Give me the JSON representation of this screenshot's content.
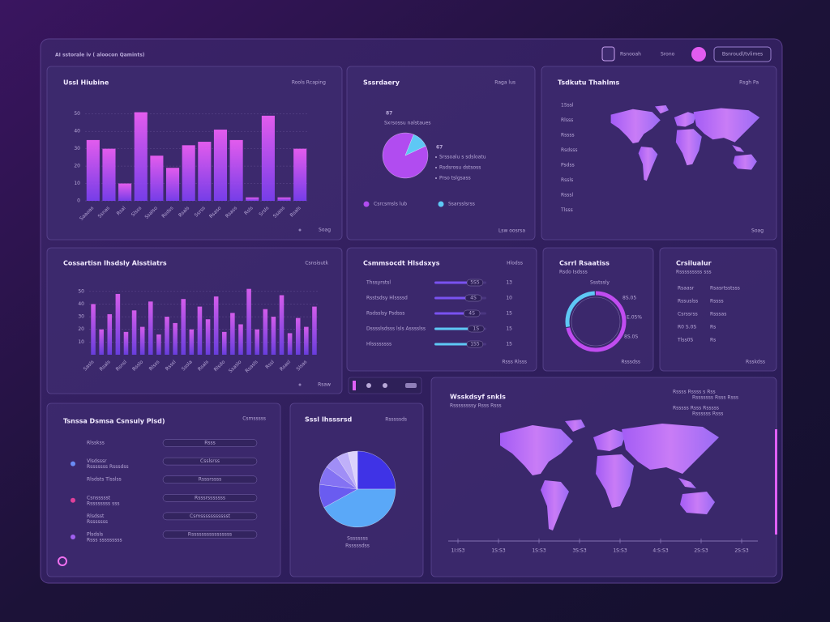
{
  "header": {
    "title": "AI sstorale iv ( aloocon Qamints)",
    "nav": [
      "Rsnooah",
      "Srono"
    ],
    "button": "Bsnroudl/tvlimes"
  },
  "chart_data": [
    {
      "type": "bar",
      "title": "Ussl Hiubine",
      "subtitle": "Rools Rcaping",
      "footer": "Soag",
      "categories": [
        "Saaoas",
        "Ssnas",
        "Rsal",
        "Slsss",
        "Ssalso",
        "Rsdss",
        "Rsals",
        "Ssrss",
        "Rsaso",
        "Rsass",
        "Rsls",
        "Srsls",
        "Ssaos",
        "Rsals"
      ],
      "values": [
        35,
        30,
        10,
        51,
        26,
        19,
        32,
        34,
        41,
        35,
        2,
        49,
        2,
        30
      ],
      "ylim": [
        0,
        55
      ],
      "yticks": [
        0,
        10,
        20,
        30,
        40,
        50
      ],
      "colors": [
        "#f060f8",
        "#7b3ff2"
      ],
      "grid": true
    },
    {
      "type": "pie",
      "title": "Sssrdaery",
      "subtitle": "Raga lus",
      "stat": "87",
      "stat_label": "Sxrsossu nalstaues",
      "stat2": "67",
      "notes": [
        "Srssoalu s sdsloatu",
        "Rsdsrosu dstsoss",
        "Prso tslgsass"
      ],
      "categories": [
        "Csrcsmsls lub",
        "Ssarsslsrss"
      ],
      "values": [
        88,
        12
      ],
      "colors": [
        "#b14cf0",
        "#5ec8f5"
      ],
      "footer": "Lsw oosrsa"
    },
    {
      "type": "bar",
      "title": "Cossartisn Ihsdsly Alsstiatrs",
      "subtitle": "Csnsisutk",
      "footer": "Rsaw",
      "categories": [
        "Sasls",
        null,
        "Rsals",
        null,
        "Rsnsl",
        null,
        "Rsslo",
        null,
        "Rlsss",
        null,
        "Rsssl",
        null,
        "Sssla",
        null,
        "Rsals",
        null,
        "Rlsdo",
        null,
        "Ssaslo",
        null,
        "Rsasls",
        null,
        "Rssl",
        null,
        "Rsasl",
        null,
        "Slsas",
        null
      ],
      "values": [
        40,
        20,
        32,
        48,
        18,
        35,
        22,
        42,
        16,
        30,
        25,
        44,
        20,
        38,
        28,
        46,
        18,
        33,
        24,
        52,
        20,
        36,
        30,
        47,
        17,
        29,
        22,
        38
      ],
      "ylim": [
        0,
        55
      ],
      "yticks": [
        10,
        20,
        30,
        40,
        50
      ],
      "colors": [
        "#e060f6",
        "#6b3fe6"
      ],
      "grid": true
    },
    {
      "type": "progress",
      "title": "Csmmsocdt Hlsdsxys",
      "subtitle": "Hlodss",
      "footer": "Rsss Rlsss",
      "categories": [
        "Thssyrstsl",
        "Rsstsdsy Hlssssd",
        "Rsdsslsy Psdsss",
        "Dsssslsdsss lsls Asssslss",
        "Hlssssssss"
      ],
      "values": [
        78,
        75,
        72,
        80,
        78
      ],
      "xlim": [
        0,
        100
      ],
      "colors": [
        "#7a52f0",
        "#7a52f0",
        "#7a52f0",
        "#5ec8f5",
        "#5ec8f5"
      ],
      "tags": [
        "5S5",
        "4S",
        "4S",
        "1S",
        "1S5"
      ],
      "counts": [
        "13",
        "10",
        "15",
        "15",
        "15"
      ]
    },
    {
      "type": "donut",
      "title": "Csrrl Rsaatiss",
      "subtitle": "Rsdo Isdsss",
      "top_label": "Ssstssly",
      "notes": [
        "8S.05",
        "E.05%",
        "8S.0S"
      ],
      "values": [
        72,
        28
      ],
      "colors": [
        "#c04cf0",
        "#5ec8f5"
      ],
      "footer": "Rsssdss"
    },
    {
      "type": "pie",
      "title": "Sssl Ihsssrsd",
      "subtitle": "Rsssssds",
      "caption": [
        "Ssssssss",
        "Rsssssdss"
      ],
      "values": [
        25,
        42,
        10,
        8,
        6,
        5,
        4
      ],
      "colors": [
        "#3f33e6",
        "#5aa8f8",
        "#6a5cf0",
        "#8472f3",
        "#a08ef6",
        "#bfb0f9",
        "#dcd2fc"
      ]
    }
  ],
  "panels": {
    "trends": {
      "title": "Tsdkutu Thahlms",
      "subtitle": "Rsgh Pa",
      "footer": "Soag",
      "labels": [
        "1Sssl",
        "Rlsss",
        "Rssss",
        "Rsdsss",
        "Psdss",
        "Rssls",
        "Rsssl",
        "Tlsss"
      ]
    },
    "table": {
      "title": "Crsilualur",
      "subtitle": "Rsssssssss sss",
      "footer": "Rsskdss",
      "rows": [
        [
          "Rsaasr",
          "Rsasrtsstsss"
        ],
        [
          "Rssuslss",
          "Rssss"
        ],
        [
          "Csrssrss",
          "Rsssas"
        ],
        [
          "R0 S.0S",
          "Rs"
        ],
        [
          "Tlss0S",
          "Rs"
        ]
      ]
    },
    "list": {
      "title": "Tsnssa Dsmsa Csnsuly Plsd)",
      "subtitle": "Csmsssss",
      "rows": [
        {
          "name": "Rlsskss",
          "tag": "Rsss"
        },
        {
          "name": "Vlsdsssr",
          "note": "Rsssssss Rsssdss",
          "tag": "Csslsrss"
        },
        {
          "name": "Rlsdsts Tlsslss",
          "tag": "Rsssrssss"
        },
        {
          "name": "Csnssssst",
          "note": "Rssssssss sss",
          "tag": "Rsssrsssssss"
        },
        {
          "name": "Rlsdsst",
          "note": "Rsssssss",
          "tag": "Csmssssssssssst"
        },
        {
          "name": "Plsdsls",
          "note": "Rsss sssssssss",
          "tag": "Rssssssssssssssss"
        }
      ]
    },
    "map": {
      "title": "Wsskdsyf snkls",
      "subtitle": "Rssssssssy Rsss Rsss",
      "notes": [
        "Rssss Rssss s Rss",
        "Rsssssss Rsss Rsss",
        "Rsssss Rsss Rsssss",
        "Rssssss Rsss"
      ],
      "axis_labels": [
        "1I:IS3",
        "1S:S3",
        "1S:S3",
        "3S:S3",
        "1S:S3",
        "4:S:S3",
        "2S:S3",
        "2S:S3"
      ]
    }
  }
}
